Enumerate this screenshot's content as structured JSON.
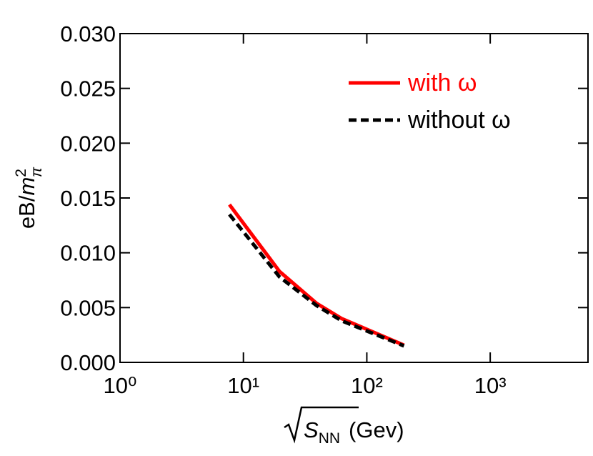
{
  "chart_data": {
    "type": "line",
    "xlabel": {
      "var": "S",
      "sub": "NN",
      "unit": "(Gev)"
    },
    "ylabel": {
      "text": "eB/",
      "var": "m",
      "sup": "2",
      "sub": "π"
    },
    "xscale": "log",
    "xlim": [
      1,
      6200
    ],
    "ylim": [
      0,
      0.03
    ],
    "xticks": [
      {
        "value": 1,
        "label": "10⁰"
      },
      {
        "value": 10,
        "label": "10¹"
      },
      {
        "value": 100,
        "label": "10²"
      },
      {
        "value": 1000,
        "label": "10³"
      }
    ],
    "yticks": [
      {
        "value": 0,
        "label": "0.000"
      },
      {
        "value": 0.005,
        "label": "0.005"
      },
      {
        "value": 0.01,
        "label": "0.010"
      },
      {
        "value": 0.015,
        "label": "0.015"
      },
      {
        "value": 0.02,
        "label": "0.020"
      },
      {
        "value": 0.025,
        "label": "0.025"
      },
      {
        "value": 0.03,
        "label": "0.030"
      }
    ],
    "legend": "upper right",
    "series": [
      {
        "name": "with ω",
        "color": "#ff0000",
        "dash": "solid",
        "x": [
          7.7,
          19.6,
          39,
          62.4,
          200
        ],
        "values": [
          0.0144,
          0.0083,
          0.0054,
          0.004,
          0.00157
        ]
      },
      {
        "name": "without ω",
        "color": "#000000",
        "dash": "dashed",
        "x": [
          7.7,
          19.6,
          39,
          62.4,
          200
        ],
        "values": [
          0.0135,
          0.0078,
          0.0052,
          0.0038,
          0.0015
        ]
      }
    ]
  }
}
